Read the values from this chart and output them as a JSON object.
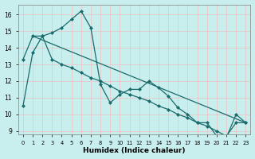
{
  "xlabel": "Humidex (Indice chaleur)",
  "bg_color": "#c8eeee",
  "grid_color": "#d4d4d4",
  "line_color": "#1a6b6b",
  "xlim": [
    -0.5,
    23.5
  ],
  "ylim": [
    8.8,
    16.6
  ],
  "yticks": [
    9,
    10,
    11,
    12,
    13,
    14,
    15,
    16
  ],
  "xticks": [
    0,
    1,
    2,
    3,
    4,
    5,
    6,
    7,
    8,
    9,
    10,
    11,
    12,
    13,
    14,
    15,
    16,
    17,
    18,
    19,
    20,
    21,
    22,
    23
  ],
  "line1_x": [
    0,
    1,
    2,
    3,
    4,
    5,
    6,
    7,
    8,
    9,
    10,
    11,
    12,
    13,
    14,
    15,
    16,
    17,
    18,
    19,
    20,
    21,
    22,
    23
  ],
  "line1_y": [
    10.5,
    13.7,
    14.7,
    14.9,
    15.2,
    15.7,
    16.2,
    15.2,
    11.8,
    10.7,
    11.2,
    11.5,
    11.5,
    12.0,
    11.6,
    11.1,
    10.4,
    10.0,
    9.5,
    9.5,
    8.7,
    8.6,
    10.0,
    9.5
  ],
  "line2_x": [
    0,
    1,
    2,
    3,
    4,
    5,
    6,
    7,
    8,
    9,
    10,
    11,
    12,
    13,
    14,
    15,
    16,
    17,
    18,
    19,
    20,
    21,
    22,
    23
  ],
  "line2_y": [
    13.3,
    14.7,
    14.7,
    13.3,
    13.0,
    12.8,
    12.5,
    12.2,
    12.0,
    11.7,
    11.4,
    11.2,
    11.0,
    10.8,
    10.5,
    10.3,
    10.0,
    9.8,
    9.5,
    9.3,
    9.0,
    8.7,
    9.5,
    9.5
  ],
  "line3_x": [
    1,
    23
  ],
  "line3_y": [
    14.7,
    9.5
  ]
}
